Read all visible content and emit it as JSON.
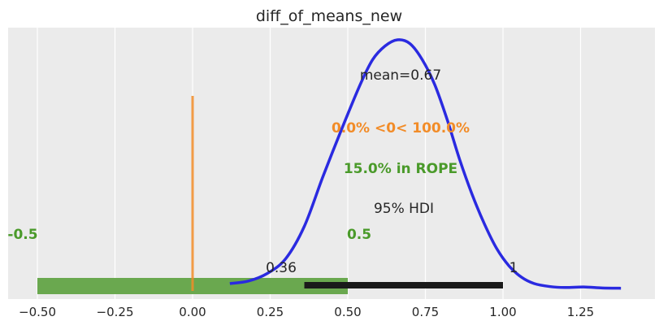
{
  "chart_data": {
    "type": "area",
    "title": "diff_of_means_new",
    "xlabel": "",
    "ylabel": "",
    "xlim": [
      -0.55,
      1.42
    ],
    "ylim": [
      0,
      1.0
    ],
    "grid": true,
    "xticks": [
      -0.5,
      -0.25,
      0.0,
      0.25,
      0.5,
      0.75,
      1.0,
      1.25
    ],
    "xtick_labels": [
      "−0.50",
      "−0.25",
      "0.00",
      "0.25",
      "0.50",
      "0.75",
      "1.00",
      "1.25"
    ],
    "density": {
      "color": "#2a2ae0",
      "x": [
        0.12,
        0.18,
        0.24,
        0.3,
        0.36,
        0.42,
        0.48,
        0.54,
        0.58,
        0.62,
        0.66,
        0.7,
        0.74,
        0.78,
        0.82,
        0.86,
        0.9,
        0.94,
        0.98,
        1.02,
        1.06,
        1.1,
        1.15,
        1.2,
        1.26,
        1.32,
        1.38
      ],
      "y": [
        0.02,
        0.03,
        0.06,
        0.12,
        0.25,
        0.45,
        0.64,
        0.82,
        0.92,
        0.975,
        1.0,
        0.985,
        0.92,
        0.82,
        0.68,
        0.52,
        0.38,
        0.26,
        0.16,
        0.09,
        0.045,
        0.02,
        0.008,
        0.004,
        0.006,
        0.002,
        0.001
      ]
    },
    "mean_text": "mean=0.67",
    "ref": {
      "value": 0.0,
      "color": "#f28c28",
      "line_top": 0.76,
      "text": "0.0% <0< 100.0%"
    },
    "rope": {
      "range": [
        -0.5,
        0.5
      ],
      "color": "#4a9a2a",
      "fill_color": "#6aa84f",
      "text": "15.0% in ROPE",
      "low_label": "-0.5",
      "high_label": "0.5"
    },
    "hdi": {
      "range": [
        0.36,
        1.0
      ],
      "label": "95% HDI",
      "low_label": "0.36",
      "high_label": "1",
      "color": "#1a1a1a"
    }
  }
}
